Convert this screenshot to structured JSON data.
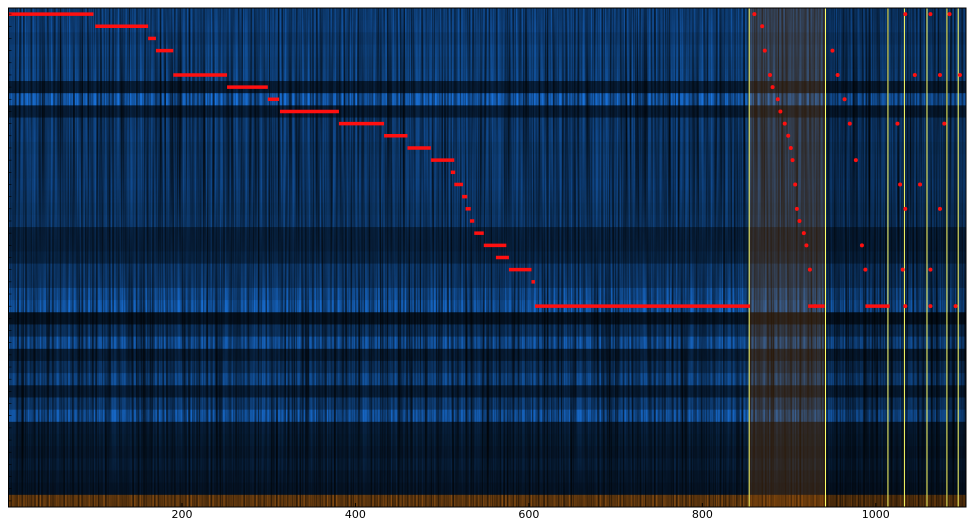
{
  "chart_data": {
    "type": "heatmap",
    "xlim": [
      0,
      1104
    ],
    "ylim": [
      0,
      41
    ],
    "xticks": [
      200,
      400,
      600,
      800,
      1000
    ],
    "colors": {
      "low": "#e08020",
      "high": "#1a78e6"
    },
    "row_levels": [
      0.7,
      0.72,
      0.65,
      0.7,
      0.68,
      0.7,
      0.3,
      0.95,
      0.3,
      0.6,
      0.62,
      0.58,
      0.6,
      0.6,
      0.62,
      0.6,
      0.58,
      0.6,
      0.35,
      0.35,
      0.4,
      0.6,
      0.6,
      0.8,
      0.9,
      0.2,
      0.5,
      0.8,
      0.3,
      0.5,
      0.7,
      0.3,
      0.6,
      0.85,
      0.3,
      0.28,
      0.25,
      0.3,
      0.25,
      0.22,
      -0.6
    ],
    "segments": {
      "color": "#ff1010",
      "x0": [
        0,
        100,
        161,
        170,
        190,
        252,
        299,
        313,
        381,
        433,
        460,
        487,
        510,
        514,
        523,
        527,
        532,
        537,
        548,
        562,
        577,
        603,
        607,
        922,
        988
      ],
      "x1": [
        98,
        161,
        170,
        190,
        252,
        299,
        312,
        381,
        433,
        460,
        487,
        514,
        515,
        524,
        529,
        533,
        537,
        548,
        574,
        577,
        603,
        607,
        855,
        941,
        1016
      ],
      "rows": [
        0,
        1,
        2,
        3,
        5,
        6,
        7,
        8,
        9,
        10,
        11,
        12,
        13,
        14,
        15,
        16,
        17,
        18,
        19,
        20,
        21,
        22,
        24,
        24,
        24
      ]
    },
    "points": {
      "color": "#ff1010",
      "x": [
        860,
        869,
        872,
        878,
        881,
        887,
        890,
        895,
        899,
        902,
        904,
        907,
        909,
        912,
        917,
        920,
        924,
        930,
        950,
        956,
        964,
        970,
        977,
        984,
        988,
        1034,
        1063,
        1085,
        1045,
        1074,
        1097,
        1025,
        1079,
        1028,
        1051,
        1034,
        1074,
        1031,
        1063,
        1034,
        1063,
        1092
      ],
      "rows": [
        0,
        1,
        3,
        5,
        6,
        7,
        8,
        9,
        10,
        11,
        12,
        14,
        16,
        17,
        18,
        19,
        21,
        24,
        3,
        5,
        7,
        9,
        12,
        19,
        21,
        0,
        0,
        0,
        5,
        5,
        5,
        9,
        9,
        14,
        14,
        16,
        16,
        21,
        21,
        24,
        24,
        24
      ]
    },
    "vlines": {
      "color": "#ffff66",
      "x": [
        854,
        942,
        1014,
        1033,
        1059,
        1082,
        1095
      ]
    }
  }
}
